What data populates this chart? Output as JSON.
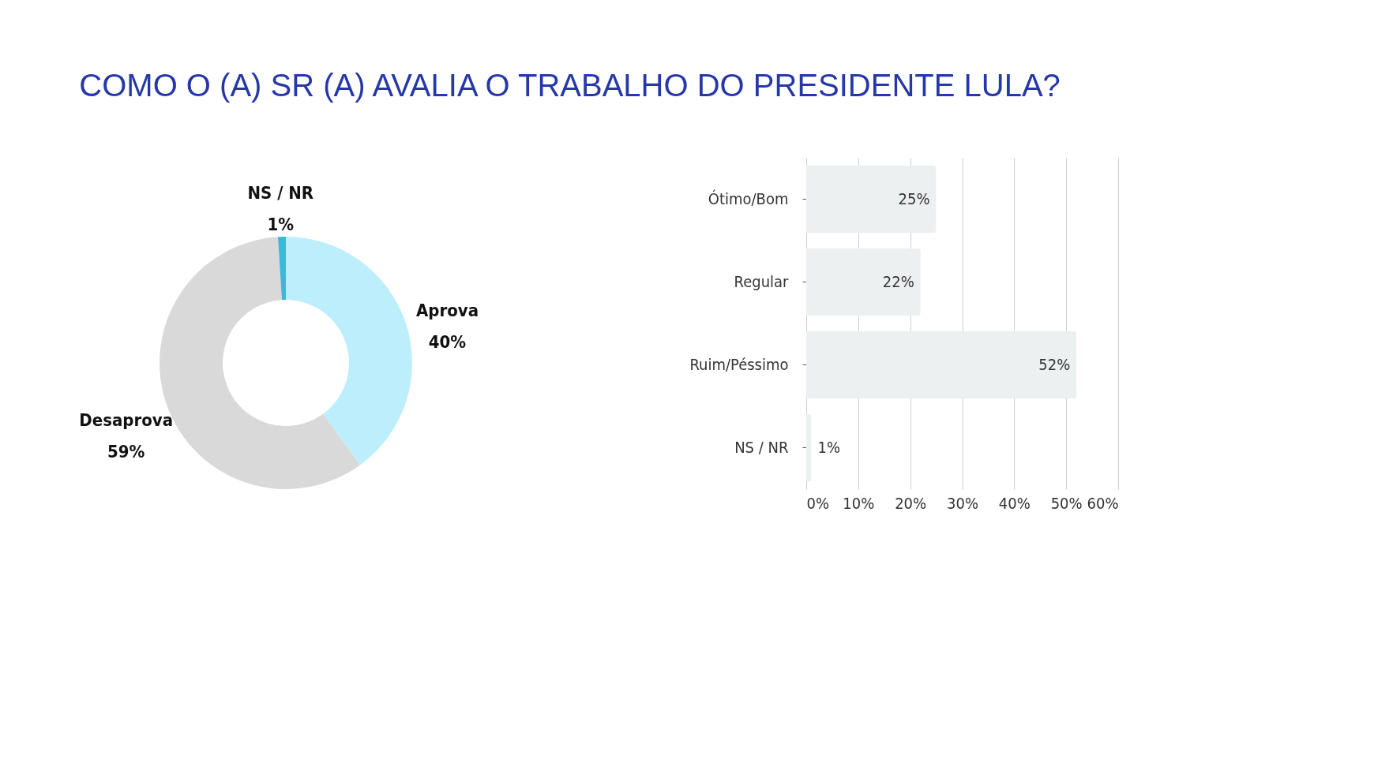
{
  "chart_data": [
    {
      "type": "donut",
      "title": "COMO O (A) SR (A) AVALIA O TRABALHO DO PRESIDENTE LULA?",
      "categories": [
        "Aprova",
        "Desaprova",
        "NS / NR"
      ],
      "values": [
        40,
        59,
        1
      ],
      "colors": [
        "#bdeefc",
        "#d9d9d9",
        "#3fb7d9"
      ],
      "value_labels": [
        "40%",
        "59%",
        "1%"
      ]
    },
    {
      "type": "bar",
      "orientation": "horizontal",
      "categories": [
        "Ótimo/Bom",
        "Regular",
        "Ruim/Péssimo",
        "NS / NR"
      ],
      "values": [
        25,
        22,
        52,
        1
      ],
      "color": "#edf0f0",
      "value_labels": [
        "25%",
        "22%",
        "52%",
        "1%"
      ],
      "xlim": [
        0,
        60
      ],
      "xticks": [
        {
          "value": 0,
          "label": "0%"
        },
        {
          "value": 10,
          "label": "10%"
        },
        {
          "value": 20,
          "label": "20%"
        },
        {
          "value": 30,
          "label": "30%"
        },
        {
          "value": 40,
          "label": "40%"
        },
        {
          "value": 50,
          "label": "50%"
        },
        {
          "value": 60,
          "label": "60%"
        }
      ],
      "grid": "x"
    }
  ]
}
